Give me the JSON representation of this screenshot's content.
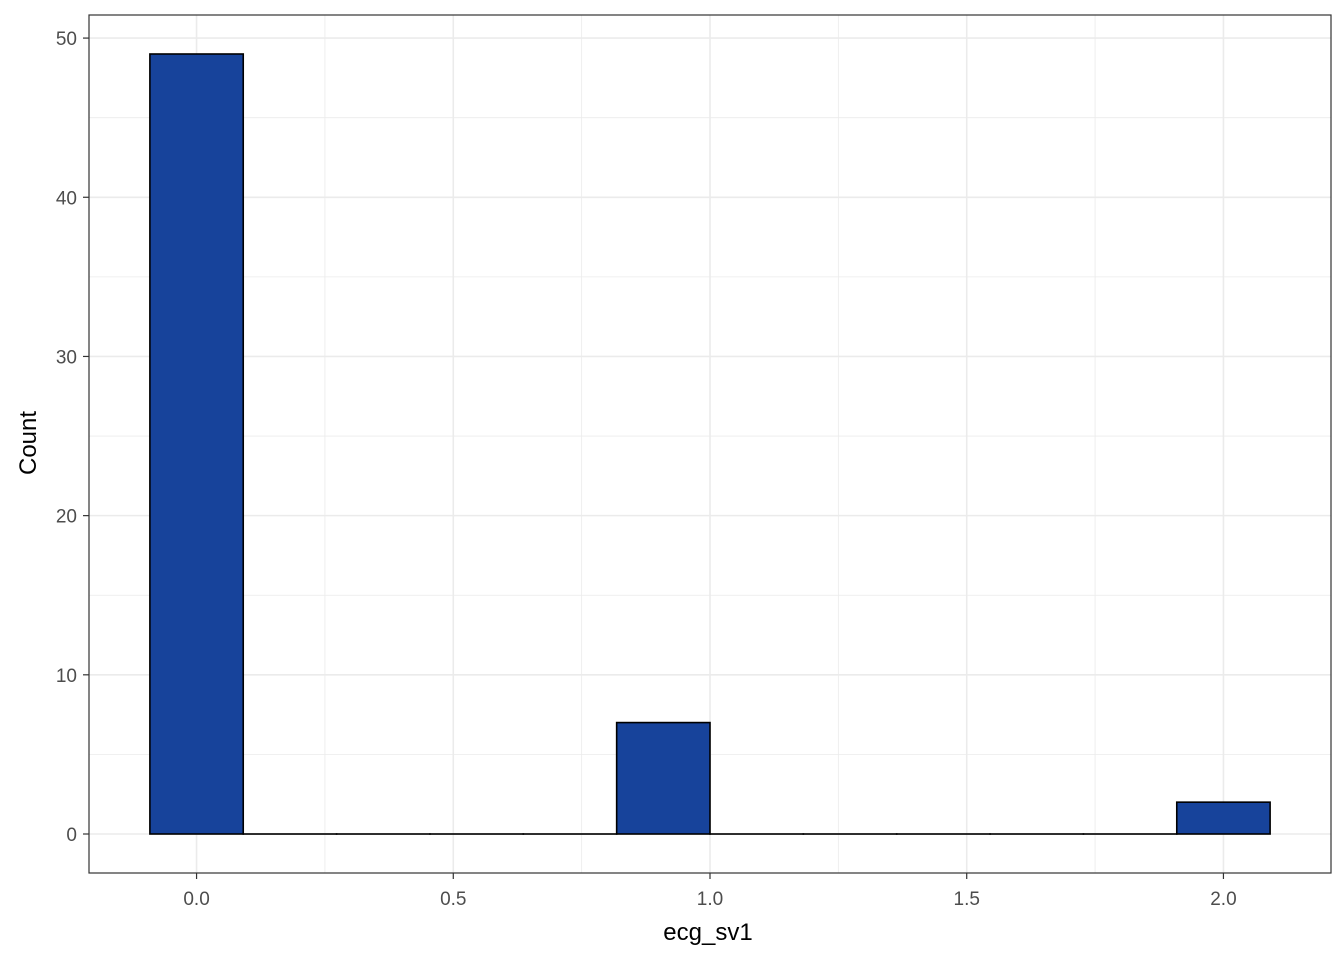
{
  "chart_data": {
    "type": "bar",
    "xlabel": "ecg_sv1",
    "ylabel": "Count",
    "xlim": [
      -0.2095,
      2.2095
    ],
    "ylim": [
      -2.45,
      51.45
    ],
    "x_ticks": [
      0.0,
      0.5,
      1.0,
      1.5,
      2.0
    ],
    "x_tick_labels": [
      "0.0",
      "0.5",
      "1.0",
      "1.5",
      "2.0"
    ],
    "y_ticks": [
      0,
      10,
      20,
      30,
      40,
      50
    ],
    "y_tick_labels": [
      "0",
      "10",
      "20",
      "30",
      "40",
      "50"
    ],
    "grid": true,
    "bin_width": 0.1818,
    "bins": [
      {
        "center": 0.0,
        "count": 49
      },
      {
        "center": 0.1818,
        "count": 0
      },
      {
        "center": 0.3636,
        "count": 0
      },
      {
        "center": 0.5455,
        "count": 0
      },
      {
        "center": 0.7273,
        "count": 0
      },
      {
        "center": 0.9091,
        "count": 7
      },
      {
        "center": 1.0909,
        "count": 0
      },
      {
        "center": 1.2727,
        "count": 0
      },
      {
        "center": 1.4545,
        "count": 0
      },
      {
        "center": 1.6364,
        "count": 0
      },
      {
        "center": 1.8182,
        "count": 0
      },
      {
        "center": 2.0,
        "count": 2
      }
    ],
    "bar_color": "#17439B",
    "bar_outline": "#000000",
    "panel_border": "#333333",
    "grid_color": "#EBEBEB"
  }
}
